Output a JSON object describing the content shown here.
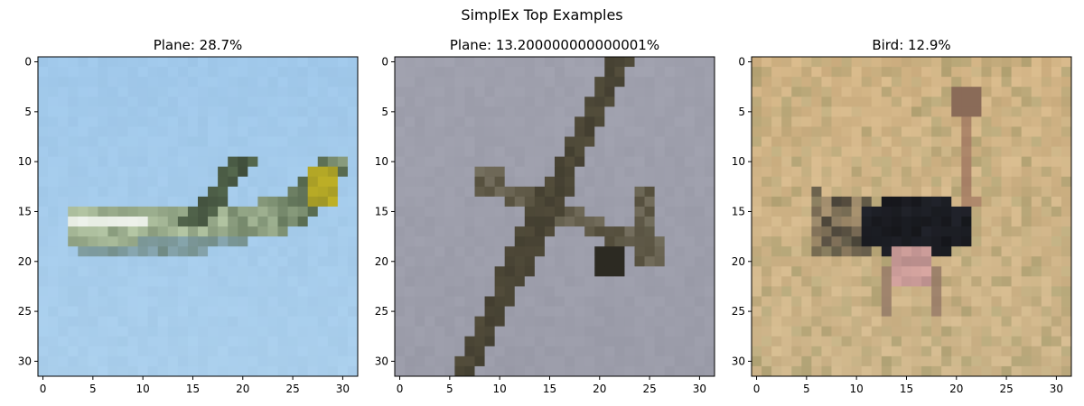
{
  "figure": {
    "suptitle": "SimplEx Top Examples"
  },
  "chart_data": [
    {
      "type": "heatmap",
      "title": "Plane: 28.7%",
      "image_size": [
        32,
        32
      ],
      "xticks": [
        0,
        5,
        10,
        15,
        20,
        25,
        30
      ],
      "yticks": [
        0,
        5,
        10,
        15,
        20,
        25,
        30
      ],
      "xlim": [
        -0.5,
        31.5
      ],
      "ylim": [
        31.5,
        -0.5
      ],
      "scene": {
        "subject": "airplane",
        "background": "#a0c8ea",
        "colors": {
          "fuselage": "#b5c7a5",
          "highlight": "#e6ece2",
          "dark": "#55684e",
          "tail": "#c2b326"
        }
      }
    },
    {
      "type": "heatmap",
      "title": "Plane: 13.200000000000001%",
      "image_size": [
        32,
        32
      ],
      "xticks": [
        0,
        5,
        10,
        15,
        20,
        25,
        30
      ],
      "yticks": [
        0,
        5,
        10,
        15,
        20,
        25,
        30
      ],
      "xlim": [
        -0.5,
        31.5
      ],
      "ylim": [
        31.5,
        -0.5
      ],
      "scene": {
        "subject": "airplane",
        "background": "#9fa0ad",
        "colors": {
          "body": "#534d3b",
          "dark": "#2c2a22",
          "light": "#b3aea0"
        }
      }
    },
    {
      "type": "heatmap",
      "title": "Bird: 12.9%",
      "image_size": [
        32,
        32
      ],
      "xticks": [
        0,
        5,
        10,
        15,
        20,
        25,
        30
      ],
      "yticks": [
        0,
        5,
        10,
        15,
        20,
        25,
        30
      ],
      "xlim": [
        -0.5,
        31.5
      ],
      "ylim": [
        31.5,
        -0.5
      ],
      "scene": {
        "subject": "ostrich",
        "background": "#cfb68b",
        "colors": {
          "body": "#15161a",
          "neck": "#b08a6c",
          "leg": "#d9a7a2",
          "grass": "#9c9a6a"
        }
      }
    }
  ]
}
